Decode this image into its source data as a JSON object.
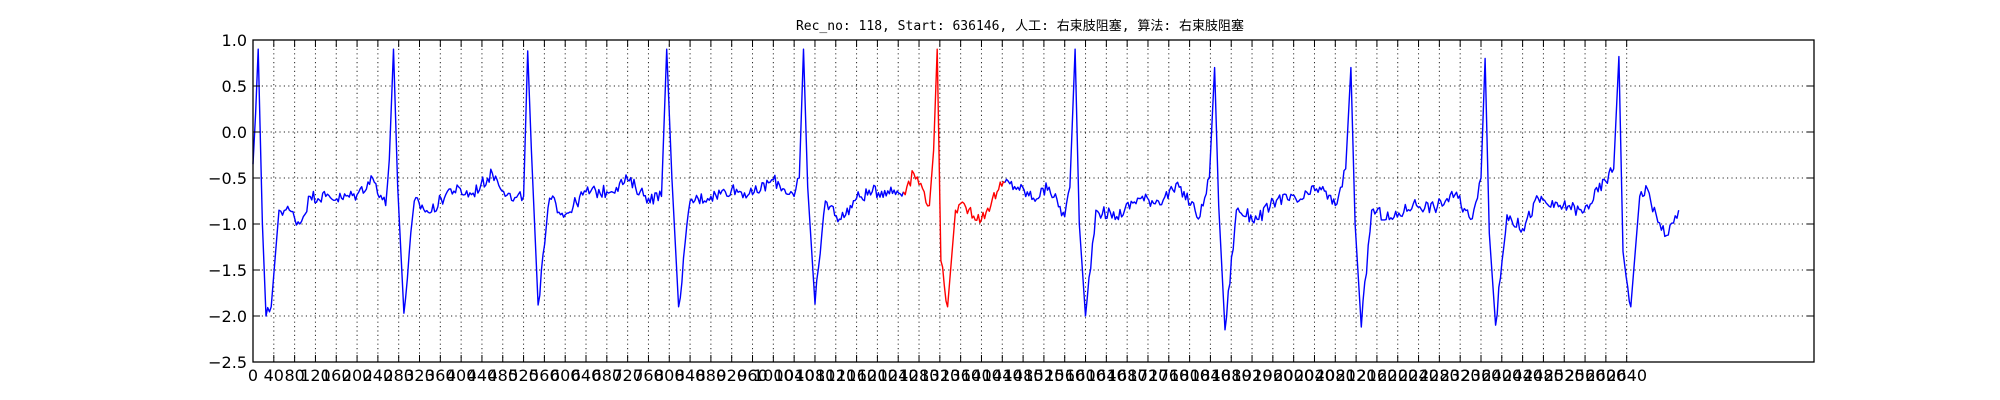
{
  "chart_data": {
    "type": "line",
    "title": "Rec_no: 118, Start: 636146, 人工: 右束肢阻塞, 算法: 右束肢阻塞",
    "xlabel": "",
    "ylabel": "",
    "xlim": [
      0,
      3000
    ],
    "ylim": [
      -2.5,
      1.0
    ],
    "yticks": [
      1.0,
      0.5,
      0.0,
      -0.5,
      -1.0,
      -1.5,
      -2.0,
      -2.5
    ],
    "ytick_labels": [
      "1.0",
      "0.5",
      "0.0",
      "−0.5",
      "−1.0",
      "−1.5",
      "−2.0",
      "−2.5"
    ],
    "xticks": [
      0,
      40,
      80,
      120,
      160,
      200,
      240,
      280,
      320,
      360,
      400,
      440,
      480,
      520,
      560,
      600,
      640,
      680,
      720,
      760,
      800,
      840,
      880,
      920,
      960,
      1000,
      1040,
      1080,
      1120,
      1160,
      1200,
      1240,
      1280,
      1320,
      1360,
      1400,
      1440,
      1480,
      1520,
      1560,
      1600,
      1640,
      1680,
      1720,
      1760,
      1800,
      1840,
      1880,
      1920,
      1960,
      2000,
      2040,
      2080,
      2120,
      2160,
      2200,
      2240,
      2280,
      2320,
      2360,
      2400,
      2440,
      2480,
      2520,
      2560,
      2600,
      2640
    ],
    "xtick_labels": [
      "0",
      "40",
      "80",
      "120",
      "160",
      "200",
      "240",
      "280",
      "320",
      "360",
      "400",
      "440",
      "480",
      "520",
      "560",
      "600",
      "640",
      "680",
      "720",
      "760",
      "800",
      "840",
      "880",
      "920",
      "960",
      "1000",
      "1040",
      "1080",
      "1120",
      "1160",
      "1200",
      "1240",
      "1280",
      "1320",
      "1360",
      "1400",
      "1440",
      "1480",
      "1520",
      "1560",
      "1600",
      "1640",
      "1680",
      "1720",
      "1760",
      "1800",
      "1840",
      "1880",
      "1920",
      "1960",
      "2000",
      "2040",
      "2080",
      "2120",
      "2160",
      "2200",
      "2240",
      "2280",
      "2320",
      "2360",
      "2400",
      "2440",
      "2480",
      "2520",
      "2560",
      "2600",
      "2640"
    ],
    "grid": true,
    "beats_x": [
      10,
      270,
      528,
      795,
      1058,
      1315,
      1580,
      1848,
      2110,
      2368,
      2625
    ],
    "beat_amplitudes": [
      0.9,
      0.9,
      0.9,
      0.9,
      0.9,
      0.9,
      0.9,
      0.7,
      0.7,
      0.8,
      0.82
    ],
    "beat_troughs": [
      -2.0,
      -1.98,
      -1.88,
      -1.9,
      -1.87,
      -1.9,
      -2.0,
      -2.15,
      -2.1,
      -2.1,
      -1.9
    ],
    "series": [
      {
        "color": "#0000ff",
        "x": [
          0,
          5,
          10,
          18,
          25,
          35,
          50,
          70,
          90,
          110,
          140,
          170,
          200,
          230,
          255,
          262,
          270,
          278,
          290,
          310,
          340,
          380,
          420,
          460,
          500,
          520,
          528,
          535,
          548,
          570,
          600,
          640,
          680,
          720,
          760,
          785,
          795,
          805,
          818,
          840,
          880,
          920,
          960,
          1000,
          1040,
          1050,
          1058,
          1066,
          1080,
          1100,
          1130,
          1160,
          1190,
          1220,
          1250
        ],
        "y": [
          -0.35,
          0.2,
          0.9,
          -1.0,
          -2.0,
          -1.9,
          -0.85,
          -0.85,
          -1.0,
          -0.7,
          -0.7,
          -0.72,
          -0.68,
          -0.5,
          -0.8,
          -0.3,
          0.9,
          -0.6,
          -1.97,
          -0.75,
          -0.88,
          -0.62,
          -0.68,
          -0.45,
          -0.75,
          -0.7,
          0.88,
          -0.2,
          -1.88,
          -0.72,
          -0.9,
          -0.65,
          -0.65,
          -0.52,
          -0.72,
          -0.7,
          0.9,
          -0.5,
          -1.9,
          -0.75,
          -0.7,
          -0.62,
          -0.68,
          -0.52,
          -0.7,
          -0.5,
          0.9,
          -0.6,
          -1.87,
          -0.75,
          -0.95,
          -0.72,
          -0.65,
          -0.64,
          -0.65
        ]
      },
      {
        "color": "#ff0000",
        "x": [
          1250,
          1270,
          1290,
          1300,
          1308,
          1315,
          1322,
          1335,
          1350,
          1370,
          1400,
          1430,
          1445
        ],
        "y": [
          -0.65,
          -0.45,
          -0.65,
          -0.8,
          -0.2,
          0.9,
          -1.4,
          -1.9,
          -0.85,
          -0.82,
          -0.95,
          -0.65,
          -0.55
        ]
      },
      {
        "color": "#0000ff",
        "x": [
          1445,
          1470,
          1500,
          1530,
          1560,
          1570,
          1580,
          1588,
          1600,
          1620,
          1660,
          1700,
          1740,
          1780,
          1820,
          1838,
          1848,
          1856,
          1868,
          1890,
          1930,
          1970,
          2010,
          2050,
          2080,
          2100,
          2110,
          2118,
          2130,
          2150,
          2190,
          2230,
          2270,
          2310,
          2340,
          2360,
          2368,
          2376,
          2388,
          2410,
          2440,
          2470,
          2500,
          2530,
          2555,
          2615,
          2625,
          2633,
          2648,
          2665,
          2680,
          2700,
          2720,
          2740
        ],
        "y": [
          -0.55,
          -0.6,
          -0.72,
          -0.6,
          -0.92,
          -0.6,
          0.9,
          -1.0,
          -2.0,
          -0.85,
          -0.92,
          -0.72,
          -0.75,
          -0.6,
          -0.92,
          -0.5,
          0.7,
          -0.8,
          -2.15,
          -0.85,
          -0.95,
          -0.72,
          -0.75,
          -0.6,
          -0.8,
          -0.4,
          0.7,
          -1.0,
          -2.12,
          -0.85,
          -0.95,
          -0.78,
          -0.82,
          -0.68,
          -0.95,
          -0.5,
          0.8,
          -1.1,
          -2.1,
          -0.9,
          -1.05,
          -0.72,
          -0.82,
          -0.8,
          -0.88,
          -0.4,
          0.82,
          -1.3,
          -1.9,
          -0.7,
          -0.62,
          -0.98,
          -1.12,
          -0.85
        ]
      }
    ]
  }
}
